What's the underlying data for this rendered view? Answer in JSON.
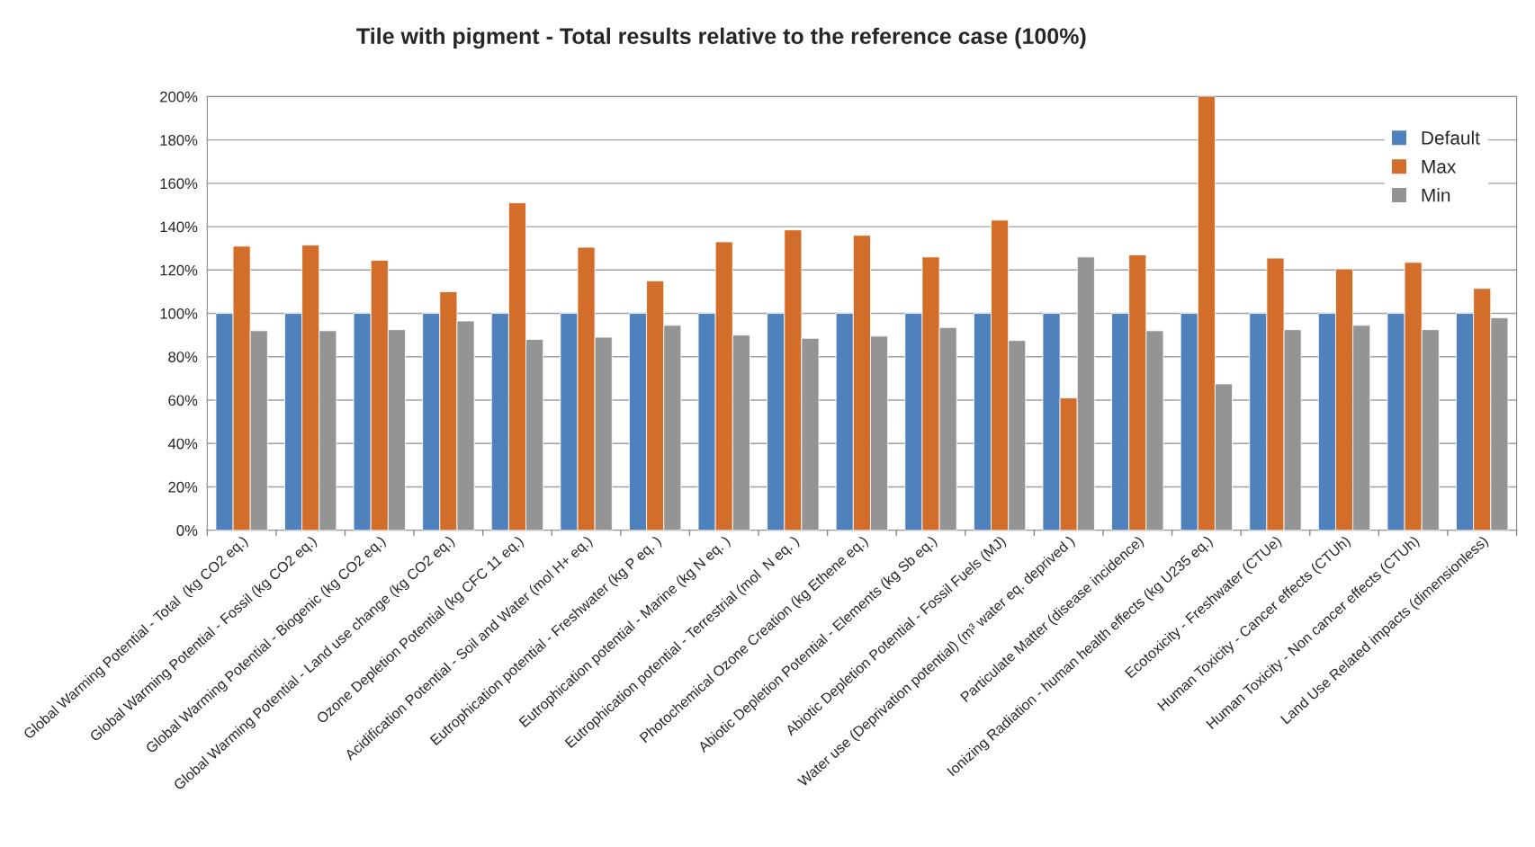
{
  "chart_data": {
    "type": "bar",
    "title": "Tile with pigment - Total results relative to the reference case (100%)",
    "categories": [
      "Global Warming Potential - Total  (kg CO2 eq.)",
      "Global Warming Potential - Fossil (kg CO2 eq.)",
      "Global Warming Potential - Biogenic (kg CO2 eq.)",
      "Global Warming Potential - Land use change (kg CO2 eq.)",
      "Ozone Depletion Potential (kg CFC 11 eq.)",
      "Acidification Potential - Soil and Water (mol H+ eq.)",
      "Eutrophication potential - Freshwater (kg P eq. )",
      "Eutrophication potential - Marine (kg N eq. )",
      "Eutrophication potential - Terrestrial (mol  N eq. )",
      "Photochemical Ozone Creation (kg Ethene eq.)",
      "Abiotic Depletion Potential - Elements (kg Sb eq.)",
      "Abiotic Depletion Potential - Fossil Fuels (MJ)",
      "Water use (Deprivation potential) (m³ water eq. deprived )",
      "Particulate Matter (disease incidence)",
      "Ionizing Radiation - human health effects (kg U235 eq.)",
      "Ecotoxicity - Freshwater (CTUe)",
      "Human Toxicity - Cancer effects (CTUh)",
      "Human Toxicity - Non cancer effects (CTUh)",
      "Land Use Related impacts (dimensionless)"
    ],
    "series": [
      {
        "name": "Default",
        "color": "#4f81bd",
        "values": [
          100,
          100,
          100,
          100,
          100,
          100,
          100,
          100,
          100,
          100,
          100,
          100,
          100,
          100,
          100,
          100,
          100,
          100,
          100
        ]
      },
      {
        "name": "Max",
        "color": "#d26e2a",
        "values": [
          131,
          131.5,
          124.5,
          110,
          151,
          130.5,
          115,
          133,
          138.5,
          136,
          126,
          143,
          61,
          127,
          200,
          125.5,
          120.5,
          123.5,
          111.5
        ]
      },
      {
        "name": "Min",
        "color": "#949494",
        "values": [
          92,
          92,
          92.5,
          96.5,
          88,
          89,
          94.5,
          90,
          88.5,
          89.5,
          93.5,
          87.5,
          126,
          92,
          67.5,
          92.5,
          94.5,
          92.5,
          98
        ]
      }
    ],
    "ylim": [
      0,
      200
    ],
    "yticks": [
      {
        "value": 0,
        "label": "0%"
      },
      {
        "value": 20,
        "label": "20%"
      },
      {
        "value": 40,
        "label": "40%"
      },
      {
        "value": 60,
        "label": "60%"
      },
      {
        "value": 80,
        "label": "80%"
      },
      {
        "value": 100,
        "label": "100%"
      },
      {
        "value": 120,
        "label": "120%"
      },
      {
        "value": 140,
        "label": "140%"
      },
      {
        "value": 160,
        "label": "160%"
      },
      {
        "value": 180,
        "label": "180%"
      },
      {
        "value": 200,
        "label": "200%"
      }
    ],
    "grid": "y",
    "legend": "top right"
  }
}
